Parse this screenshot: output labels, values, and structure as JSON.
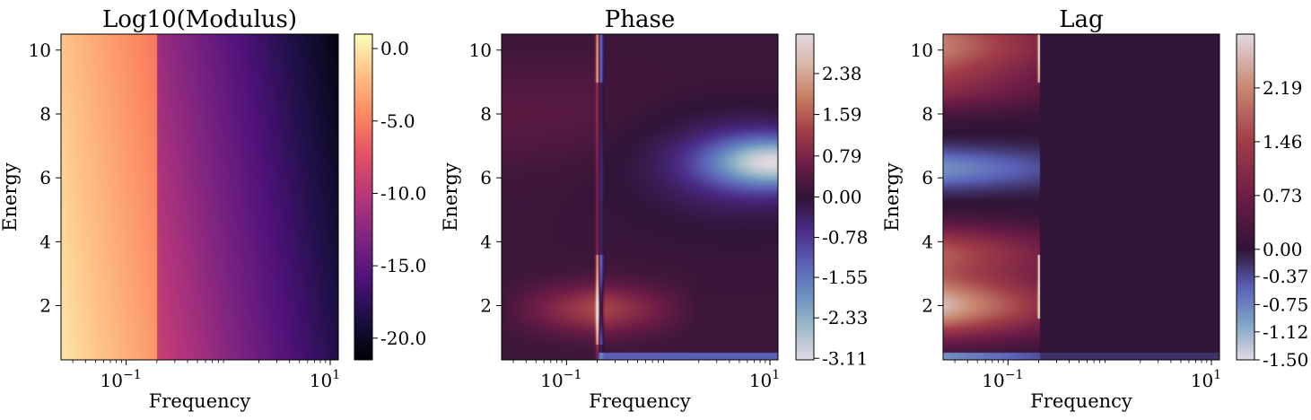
{
  "chart_data": [
    {
      "type": "heatmap",
      "title": "Log10(Modulus)",
      "xlabel": "Frequency",
      "ylabel": "Energy",
      "xscale": "log",
      "xlim": [
        0.023,
        12
      ],
      "ylim": [
        0.3,
        10.5
      ],
      "xticks": [
        {
          "value": 0.1,
          "label": "10",
          "exp": "−1"
        },
        {
          "value": 10,
          "label": "10",
          "exp": "1"
        }
      ],
      "yticks": [
        2,
        4,
        6,
        8,
        10
      ],
      "colormap": "magma",
      "colorbar": {
        "min": -21.5,
        "max": 1.0,
        "ticks": [
          0.0,
          -5.0,
          -10.0,
          -15.0,
          -20.0
        ],
        "tick_labels": [
          "0.0",
          "-5.0",
          "-10.0",
          "-15.0",
          "-20.0"
        ]
      },
      "features": {
        "transition_frequency": 0.2
      }
    },
    {
      "type": "heatmap",
      "title": "Phase",
      "xlabel": "Frequency",
      "ylabel": "Energy",
      "xscale": "log",
      "xlim": [
        0.023,
        12
      ],
      "ylim": [
        0.3,
        10.5
      ],
      "xticks": [
        {
          "value": 0.1,
          "label": "10",
          "exp": "−1"
        },
        {
          "value": 10,
          "label": "10",
          "exp": "1"
        }
      ],
      "yticks": [
        2,
        4,
        6,
        8,
        10
      ],
      "colormap": "twilight_shifted",
      "colorbar": {
        "min": -3.14,
        "max": 3.14,
        "ticks": [
          2.38,
          1.59,
          0.79,
          0.0,
          -0.78,
          -1.55,
          -2.33,
          -3.11
        ],
        "tick_labels": [
          "2.38",
          "1.59",
          "0.79",
          "0.00",
          "-0.78",
          "-1.55",
          "-2.33",
          "-3.11"
        ]
      },
      "features": {
        "transition_frequency": 0.2,
        "blob_energy": 6.5
      }
    },
    {
      "type": "heatmap",
      "title": "Lag",
      "xlabel": "Frequency",
      "ylabel": "Energy",
      "xscale": "log",
      "xlim": [
        0.023,
        12
      ],
      "ylim": [
        0.3,
        10.5
      ],
      "xticks": [
        {
          "value": 0.1,
          "label": "10",
          "exp": "−1"
        },
        {
          "value": 10,
          "label": "10",
          "exp": "1"
        }
      ],
      "yticks": [
        2,
        4,
        6,
        8,
        10
      ],
      "colormap": "twilight_shifted",
      "colorbar": {
        "min": -1.5,
        "max": 2.92,
        "ticks": [
          2.19,
          1.46,
          0.73,
          0.0,
          -0.37,
          -0.75,
          -1.12,
          -1.5
        ],
        "tick_labels": [
          "2.19",
          "1.46",
          "0.73",
          "0.00",
          "-0.37",
          "-0.75",
          "-1.12",
          "-1.50"
        ]
      },
      "features": {
        "transition_frequency": 0.2
      }
    }
  ]
}
